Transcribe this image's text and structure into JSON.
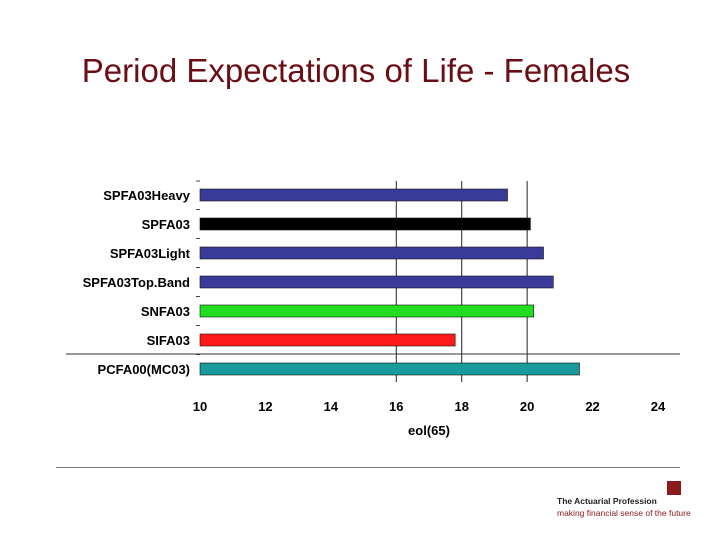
{
  "slide": {
    "title": "Period Expectations of Life - Females"
  },
  "footer": {
    "org_name": "The Actuarial Profession",
    "tagline": "making financial sense of the future",
    "brand_color": "#8b1a1a"
  },
  "chart_data": {
    "type": "bar",
    "orientation": "horizontal",
    "title": "Period Expectations of Life - Females",
    "xlabel": "eol(65)",
    "ylabel": "",
    "xlim": [
      10,
      24
    ],
    "x_ticks": [
      10,
      12,
      14,
      16,
      18,
      20,
      22,
      24
    ],
    "gridlines_x": [
      16,
      18,
      20
    ],
    "grid": true,
    "legend": "none",
    "categories": [
      "SPFA03Heavy",
      "SPFA03",
      "SPFA03Light",
      "SPFA03Top.Band",
      "SNFA03",
      "SIFA03",
      "PCFA00(MC03)"
    ],
    "values": [
      19.4,
      20.1,
      20.5,
      20.8,
      20.2,
      17.8,
      21.6
    ],
    "colors": [
      "#3a3a9a",
      "#000000",
      "#3a3a9a",
      "#3a3a9a",
      "#22dd22",
      "#ff1a1a",
      "#1a9a9a"
    ]
  }
}
